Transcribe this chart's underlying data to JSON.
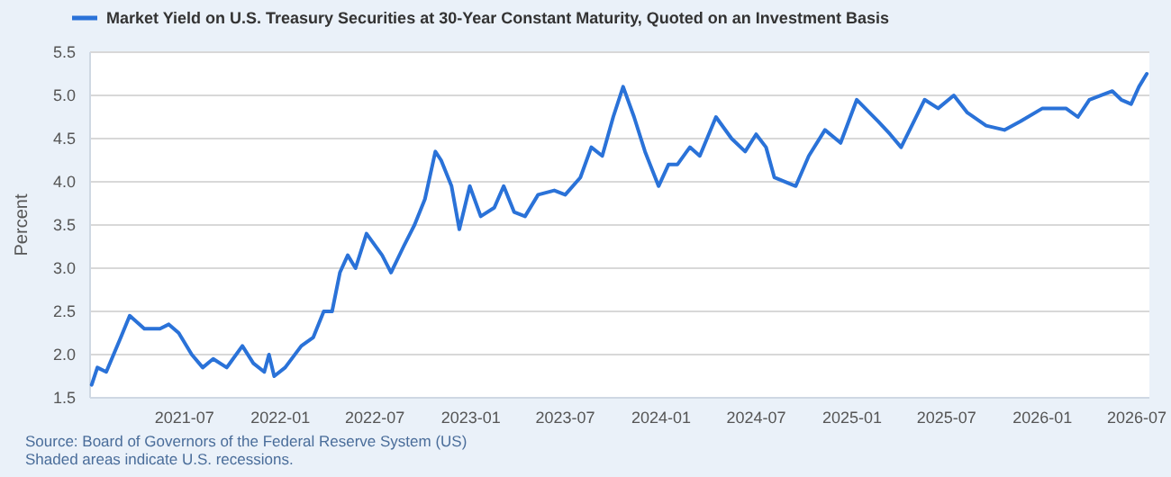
{
  "chart_data": {
    "type": "line",
    "ylabel": "Percent",
    "legend": "top",
    "grid": "y",
    "line_style": "solid",
    "marker": "none",
    "annotations": [
      "Source: Board of Governors of the Federal Reserve System (US)",
      "Shaded areas indicate U.S. recessions."
    ],
    "xlim": [
      "2021-01-01",
      "2026-07-25"
    ],
    "xticks": [
      "2021-07",
      "2022-01",
      "2022-07",
      "2023-01",
      "2023-07",
      "2024-01",
      "2024-07",
      "2025-01",
      "2025-07",
      "2026-01",
      "2026-07"
    ],
    "ylim": [
      1.5,
      5.5
    ],
    "yticks": [
      1.5,
      {
        "value": 2,
        "label": "2.0"
      },
      2.5,
      {
        "value": 3,
        "label": "3.0"
      },
      3.5,
      {
        "value": 4,
        "label": "4.0"
      },
      4.5,
      {
        "value": 5,
        "label": "5.0"
      },
      5.5
    ],
    "series": [
      {
        "name": "Market Yield on U.S. Treasury Securities at 30-Year Constant Maturity, Quoted on an Investment Basis",
        "color": "#2a72d8",
        "x": [
          "2021-01-04",
          "2021-01-15",
          "2021-02-01",
          "2021-02-15",
          "2021-03-01",
          "2021-03-18",
          "2021-04-15",
          "2021-05-15",
          "2021-06-01",
          "2021-06-20",
          "2021-07-15",
          "2021-08-05",
          "2021-08-25",
          "2021-09-20",
          "2021-10-20",
          "2021-11-10",
          "2021-12-01",
          "2021-12-10",
          "2021-12-20",
          "2022-01-10",
          "2022-02-10",
          "2022-03-05",
          "2022-03-25",
          "2022-04-10",
          "2022-04-25",
          "2022-05-10",
          "2022-05-25",
          "2022-06-15",
          "2022-07-15",
          "2022-08-01",
          "2022-08-25",
          "2022-09-15",
          "2022-10-05",
          "2022-10-25",
          "2022-11-05",
          "2022-11-25",
          "2022-12-10",
          "2022-12-30",
          "2023-01-20",
          "2023-02-15",
          "2023-03-05",
          "2023-03-25",
          "2023-04-15",
          "2023-05-10",
          "2023-06-10",
          "2023-07-01",
          "2023-07-30",
          "2023-08-20",
          "2023-09-10",
          "2023-10-01",
          "2023-10-20",
          "2023-11-10",
          "2023-12-01",
          "2023-12-27",
          "2024-01-15",
          "2024-02-01",
          "2024-02-25",
          "2024-03-15",
          "2024-04-15",
          "2024-05-15",
          "2024-06-10",
          "2024-07-01",
          "2024-07-20",
          "2024-08-05",
          "2024-09-15",
          "2024-10-10",
          "2024-11-10",
          "2024-12-10",
          "2025-01-10",
          "2025-02-20",
          "2025-03-15",
          "2025-04-05",
          "2025-05-20",
          "2025-06-15",
          "2025-07-15",
          "2025-08-10",
          "2025-09-15",
          "2025-10-20",
          "2025-11-20",
          "2026-01-01",
          "2026-02-15",
          "2026-03-10",
          "2026-04-01",
          "2026-05-15",
          "2026-06-01",
          "2026-06-20",
          "2026-07-05",
          "2026-07-20"
        ],
        "values": [
          1.65,
          1.85,
          1.8,
          2.0,
          2.2,
          2.45,
          2.3,
          2.3,
          2.35,
          2.25,
          2.0,
          1.85,
          1.95,
          1.85,
          2.1,
          1.9,
          1.8,
          2.0,
          1.75,
          1.85,
          2.1,
          2.2,
          2.5,
          2.5,
          2.95,
          3.15,
          3.0,
          3.4,
          3.15,
          2.95,
          3.25,
          3.5,
          3.8,
          4.35,
          4.25,
          3.95,
          3.45,
          3.95,
          3.6,
          3.7,
          3.95,
          3.65,
          3.6,
          3.85,
          3.9,
          3.85,
          4.05,
          4.4,
          4.3,
          4.75,
          5.1,
          4.75,
          4.35,
          3.95,
          4.2,
          4.2,
          4.4,
          4.3,
          4.75,
          4.5,
          4.35,
          4.55,
          4.4,
          4.05,
          3.95,
          4.3,
          4.6,
          4.45,
          4.95,
          4.7,
          4.55,
          4.4,
          4.95,
          4.85,
          5.0,
          4.8,
          4.65,
          4.6,
          4.7,
          4.85,
          4.85,
          4.75,
          4.95,
          5.05,
          4.95,
          4.9,
          5.1,
          5.25
        ]
      }
    ]
  }
}
